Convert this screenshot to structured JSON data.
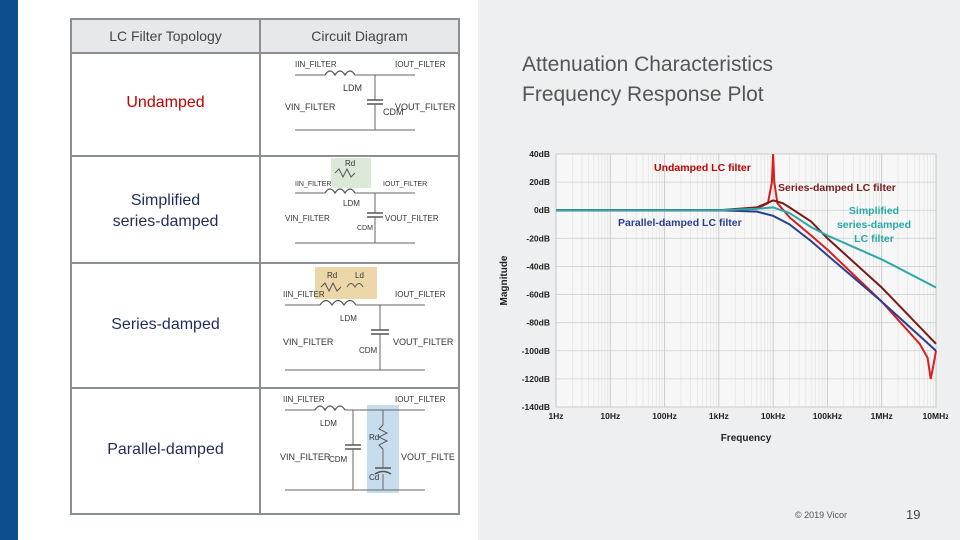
{
  "table": {
    "header_topology": "LC Filter Topology",
    "header_circuit": "Circuit Diagram",
    "rows": [
      {
        "label": "Undamped",
        "color": "#c00000"
      },
      {
        "label": "Simplified series-damped",
        "label_line1": "Simplified",
        "label_line2": "series-damped",
        "color": "#1f2d5a"
      },
      {
        "label": "Series-damped",
        "color": "#1f2d5a"
      },
      {
        "label": "Parallel-damped",
        "color": "#1f2d5a"
      }
    ]
  },
  "circuit_labels": {
    "i_in": "IIN_FILTER",
    "i_out": "IOUT_FILTER",
    "l_dm": "LDM",
    "c_dm": "CDM",
    "v_in": "VIN_FILTER",
    "v_out": "VOUT_FILTER",
    "r_d": "Rd",
    "c_d": "Cd",
    "l_d": "Ld"
  },
  "slide": {
    "title_line1": "Attenuation Characteristics",
    "title_line2": "Frequency Response Plot",
    "copyright": "© 2019 Vicor",
    "page_number": "19"
  },
  "chart_data": {
    "type": "line",
    "xlabel": "Frequency",
    "ylabel": "Magnitude",
    "x_scale": "log",
    "x_ticks": [
      "1Hz",
      "10Hz",
      "100Hz",
      "1kHz",
      "10kHz",
      "100kHz",
      "1MHz",
      "10MHz"
    ],
    "y_ticks": [
      "40dB",
      "20dB",
      "0dB",
      "-20dB",
      "-40dB",
      "-60dB",
      "-80dB",
      "-100dB",
      "-120dB",
      "-140dB"
    ],
    "ylim": [
      -140,
      40
    ],
    "grid": true,
    "annotations": [
      {
        "text": "Undamped LC filter",
        "color": "#c00000"
      },
      {
        "text": "Series-damped LC filter",
        "color": "#7a1a1a"
      },
      {
        "text": "Parallel-damped LC filter",
        "color": "#2a3f8f"
      },
      {
        "text": "Simplified series-damped LC filter",
        "line1": "Simplified",
        "line2": "series-damped",
        "line3": "LC filter",
        "color": "#2aa7a7"
      }
    ],
    "series": [
      {
        "name": "Undamped LC filter",
        "color": "#d81e1e",
        "x": [
          1,
          1000,
          5000,
          8000,
          9500,
          10000,
          10500,
          12000,
          20000,
          50000,
          100000,
          1000000,
          5000000,
          7000000,
          8000000,
          9000000,
          10000000
        ],
        "y": [
          0,
          0,
          1,
          5,
          20,
          40,
          20,
          5,
          -5,
          -18,
          -28,
          -65,
          -95,
          -105,
          -120,
          -110,
          -100
        ]
      },
      {
        "name": "Series-damped LC filter",
        "color": "#7a1a1a",
        "x": [
          1,
          1000,
          5000,
          10000,
          15000,
          20000,
          50000,
          100000,
          1000000,
          10000000
        ],
        "y": [
          0,
          0,
          2,
          7,
          5,
          2,
          -8,
          -20,
          -55,
          -95
        ]
      },
      {
        "name": "Parallel-damped LC filter",
        "color": "#2a3f8f",
        "x": [
          1,
          1000,
          5000,
          10000,
          20000,
          50000,
          100000,
          1000000,
          10000000
        ],
        "y": [
          0,
          0,
          -1,
          -4,
          -10,
          -22,
          -32,
          -65,
          -100
        ]
      },
      {
        "name": "Simplified series-damped LC filter",
        "color": "#2aa7a7",
        "x": [
          1,
          1000,
          5000,
          10000,
          20000,
          50000,
          100000,
          1000000,
          10000000
        ],
        "y": [
          0,
          0,
          1,
          2,
          -2,
          -12,
          -18,
          -35,
          -55
        ]
      }
    ],
    "colors": {
      "undamped": "#d81e1e",
      "series_damped": "#7a1a1a",
      "parallel_damped": "#2a3f8f",
      "simplified": "#2aa7a7"
    }
  },
  "colors": {
    "accent_bar": "#0a4f8c",
    "panel_bg": "#eeeff0"
  }
}
